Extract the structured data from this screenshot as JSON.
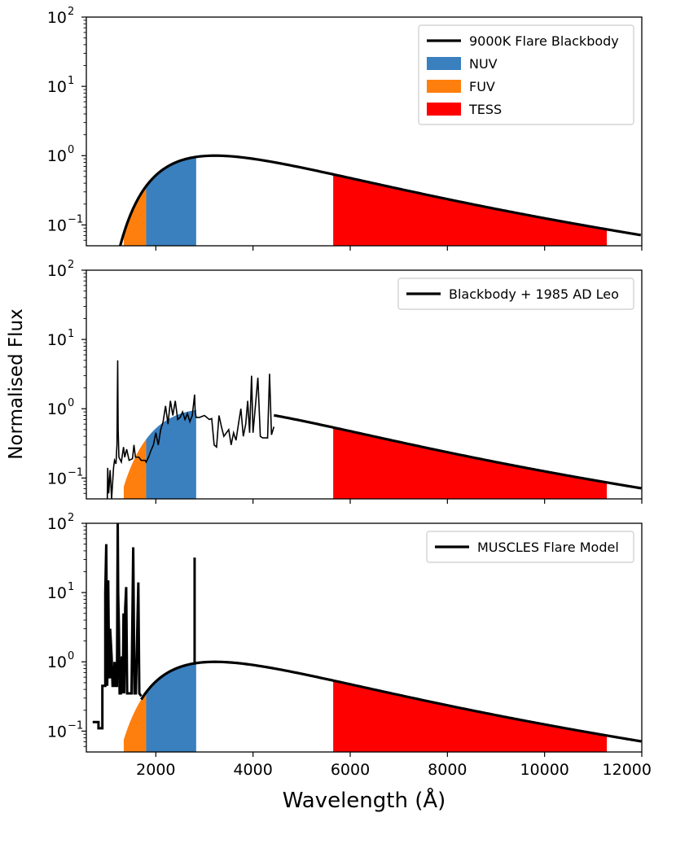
{
  "chart_data": {
    "type": "line",
    "xlabel": "Wavelength (Å)",
    "ylabel": "Normalised Flux",
    "x_range": [
      570,
      12000
    ],
    "y_range": [
      0.05,
      100
    ],
    "y_scale": "log",
    "x_ticks": [
      2000,
      4000,
      6000,
      8000,
      10000,
      12000
    ],
    "x_tick_labels": [
      "2000",
      "4000",
      "6000",
      "8000",
      "10000",
      "12000"
    ],
    "y_ticks": [
      {
        "value": 0.1,
        "base": "10",
        "exponent": "−1"
      },
      {
        "value": 1,
        "base": "10",
        "exponent": "0"
      },
      {
        "value": 10,
        "base": "10",
        "exponent": "1"
      },
      {
        "value": 100,
        "base": "10",
        "exponent": "2"
      }
    ],
    "blackbody_temperature_K": 9000,
    "bands": [
      {
        "name": "NUV",
        "from": 1800,
        "to": 2830,
        "color": "#3a7fbe"
      },
      {
        "name": "FUV",
        "from": 1340,
        "to": 1800,
        "color": "#ff7f0e"
      },
      {
        "name": "TESS",
        "from": 5650,
        "to": 11280,
        "color": "#ff0000"
      }
    ],
    "panels": [
      {
        "series_name": "9000K Flare Blackbody",
        "legend": [
          "9000K Flare Blackbody",
          "NUV",
          "FUV",
          "TESS"
        ],
        "bands": [
          "FUV",
          "NUV",
          "TESS"
        ],
        "curve": "blackbody",
        "bb_from": 1000
      },
      {
        "series_name": "Blackbody + 1985 AD Leo",
        "legend": [
          "Blackbody + 1985 AD Leo"
        ],
        "bands": [
          "FUV",
          "NUV",
          "TESS"
        ],
        "curve": "adleo",
        "bb_from": 4430,
        "spectrum": [
          [
            1000,
            0.04
          ],
          [
            1010,
            0.14
          ],
          [
            1030,
            0.06
          ],
          [
            1060,
            0.13
          ],
          [
            1090,
            0.05
          ],
          [
            1130,
            0.14
          ],
          [
            1150,
            0.18
          ],
          [
            1180,
            0.16
          ],
          [
            1200,
            0.3
          ],
          [
            1215,
            5.0
          ],
          [
            1225,
            0.5
          ],
          [
            1240,
            0.2
          ],
          [
            1290,
            0.17
          ],
          [
            1335,
            0.28
          ],
          [
            1360,
            0.2
          ],
          [
            1400,
            0.26
          ],
          [
            1450,
            0.18
          ],
          [
            1520,
            0.19
          ],
          [
            1550,
            0.3
          ],
          [
            1580,
            0.2
          ],
          [
            1650,
            0.2
          ],
          [
            1700,
            0.18
          ],
          [
            1780,
            0.18
          ],
          [
            1800,
            0.17
          ],
          [
            1850,
            0.2
          ],
          [
            1900,
            0.25
          ],
          [
            1950,
            0.3
          ],
          [
            2000,
            0.45
          ],
          [
            2050,
            0.3
          ],
          [
            2100,
            0.5
          ],
          [
            2150,
            0.65
          ],
          [
            2200,
            1.1
          ],
          [
            2250,
            0.6
          ],
          [
            2300,
            1.3
          ],
          [
            2350,
            0.8
          ],
          [
            2400,
            1.3
          ],
          [
            2450,
            0.7
          ],
          [
            2500,
            0.75
          ],
          [
            2550,
            0.9
          ],
          [
            2600,
            0.7
          ],
          [
            2650,
            0.85
          ],
          [
            2700,
            0.65
          ],
          [
            2750,
            0.8
          ],
          [
            2798,
            1.6
          ],
          [
            2810,
            0.9
          ],
          [
            2830,
            0.75
          ],
          [
            2900,
            0.75
          ],
          [
            3000,
            0.8
          ],
          [
            3100,
            0.7
          ],
          [
            3150,
            0.72
          ],
          [
            3200,
            0.3
          ],
          [
            3250,
            0.28
          ],
          [
            3300,
            0.8
          ],
          [
            3350,
            0.55
          ],
          [
            3400,
            0.4
          ],
          [
            3500,
            0.5
          ],
          [
            3550,
            0.3
          ],
          [
            3600,
            0.45
          ],
          [
            3650,
            0.35
          ],
          [
            3700,
            0.6
          ],
          [
            3750,
            1.0
          ],
          [
            3800,
            0.4
          ],
          [
            3850,
            0.6
          ],
          [
            3890,
            1.3
          ],
          [
            3930,
            0.45
          ],
          [
            3970,
            3.0
          ],
          [
            4000,
            0.45
          ],
          [
            4100,
            2.8
          ],
          [
            4150,
            0.4
          ],
          [
            4200,
            0.38
          ],
          [
            4300,
            0.38
          ],
          [
            4340,
            3.2
          ],
          [
            4380,
            0.42
          ],
          [
            4430,
            0.55
          ]
        ]
      },
      {
        "series_name": "MUSCLES Flare Model",
        "legend": [
          "MUSCLES Flare Model"
        ],
        "bands": [
          "FUV",
          "NUV",
          "TESS"
        ],
        "curve": "muscles",
        "bb_from": 1700,
        "spectrum": [
          [
            700,
            0.135
          ],
          [
            820,
            0.135
          ],
          [
            820,
            0.11
          ],
          [
            900,
            0.11
          ],
          [
            900,
            0.45
          ],
          [
            960,
            0.45
          ],
          [
            960,
            10
          ],
          [
            980,
            50
          ],
          [
            1000,
            0.45
          ],
          [
            1020,
            15
          ],
          [
            1040,
            0.6
          ],
          [
            1060,
            0.6
          ],
          [
            1060,
            3
          ],
          [
            1090,
            1.2
          ],
          [
            1110,
            0.45
          ],
          [
            1140,
            0.45
          ],
          [
            1150,
            1.0
          ],
          [
            1170,
            0.45
          ],
          [
            1200,
            0.45
          ],
          [
            1210,
            15
          ],
          [
            1216,
            100
          ],
          [
            1225,
            10
          ],
          [
            1240,
            3
          ],
          [
            1255,
            0.35
          ],
          [
            1280,
            0.35
          ],
          [
            1300,
            1.2
          ],
          [
            1320,
            0.35
          ],
          [
            1335,
            5
          ],
          [
            1350,
            0.35
          ],
          [
            1370,
            6
          ],
          [
            1390,
            12
          ],
          [
            1410,
            0.35
          ],
          [
            1460,
            0.35
          ],
          [
            1500,
            0.35
          ],
          [
            1535,
            45
          ],
          [
            1560,
            0.35
          ],
          [
            1590,
            0.35
          ],
          [
            1640,
            14
          ],
          [
            1660,
            0.35
          ],
          [
            1700,
            0.32
          ]
        ],
        "mgii_line": {
          "x": 2798,
          "peak": 32
        }
      }
    ]
  }
}
